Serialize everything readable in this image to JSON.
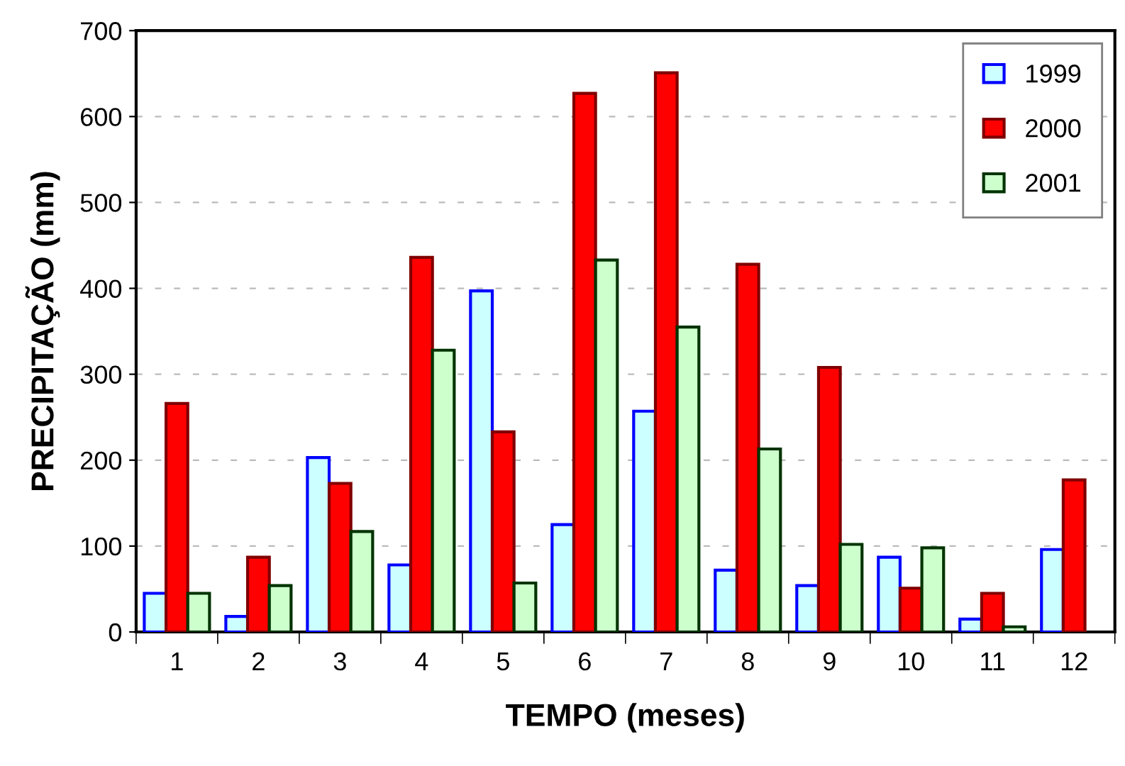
{
  "chart_data": {
    "type": "bar",
    "xlabel": "TEMPO (meses)",
    "ylabel": "PRECIPITAÇÃO (mm)",
    "categories": [
      "1",
      "2",
      "3",
      "4",
      "5",
      "6",
      "7",
      "8",
      "9",
      "10",
      "11",
      "12"
    ],
    "series": [
      {
        "name": "1999",
        "color": "#ccffff",
        "values": [
          45,
          18,
          203,
          78,
          397,
          125,
          257,
          72,
          54,
          87,
          15,
          96
        ]
      },
      {
        "name": "2000",
        "color": "#ff0000",
        "values": [
          266,
          87,
          173,
          436,
          233,
          627,
          651,
          428,
          308,
          51,
          45,
          177
        ]
      },
      {
        "name": "2001",
        "color": "#ccffcc",
        "values": [
          45,
          54,
          117,
          328,
          57,
          433,
          355,
          213,
          102,
          98,
          6,
          null
        ]
      }
    ],
    "ylim": [
      0,
      700
    ],
    "yticks": [
      0,
      100,
      200,
      300,
      400,
      500,
      600,
      700
    ],
    "grid": "y",
    "legend": "top right"
  }
}
